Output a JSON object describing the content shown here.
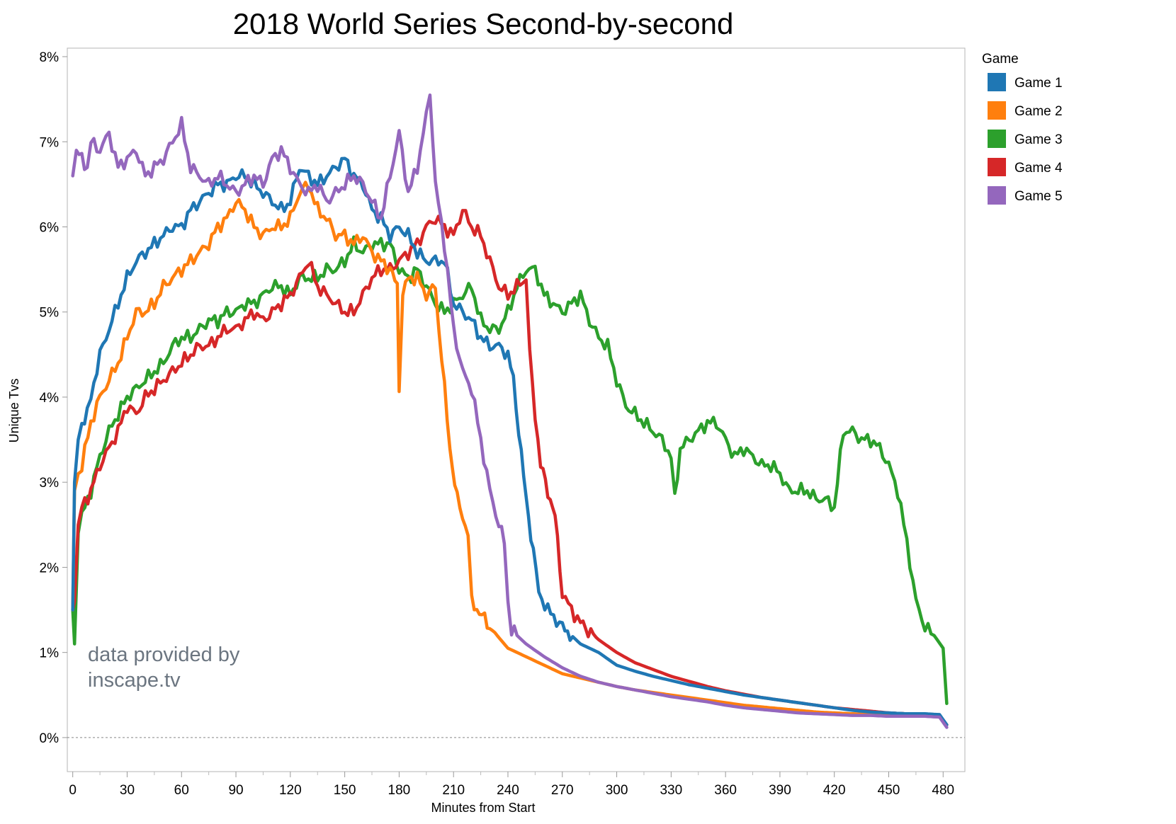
{
  "chart_data": {
    "type": "line",
    "title": "2018 World Series Second-by-second",
    "xlabel": "Minutes from Start",
    "ylabel": "Unique Tvs",
    "xlim": [
      -3,
      492
    ],
    "ylim": [
      -0.4,
      8.1
    ],
    "x_ticks": [
      0,
      30,
      60,
      90,
      120,
      150,
      180,
      210,
      240,
      270,
      300,
      330,
      360,
      390,
      420,
      450,
      480
    ],
    "x_minor_ticks": [
      15,
      45,
      75,
      105,
      135,
      165,
      195,
      225,
      255,
      285,
      315,
      345,
      375,
      405,
      435,
      465
    ],
    "y_ticks": [
      0,
      1,
      2,
      3,
      4,
      5,
      6,
      7,
      8
    ],
    "y_tick_labels": [
      "0%",
      "1%",
      "2%",
      "3%",
      "4%",
      "5%",
      "6%",
      "7%",
      "8%"
    ],
    "zero_line": "dashed",
    "grid": false,
    "legend": {
      "title": "Game",
      "position": "right"
    },
    "annotation": [
      "data provided by",
      "inscape.tv"
    ],
    "series": [
      {
        "name": "Game 1",
        "color": "#1f77b4",
        "x": [
          0,
          1,
          3,
          5,
          8,
          10,
          15,
          20,
          25,
          30,
          35,
          40,
          45,
          50,
          55,
          60,
          65,
          70,
          75,
          80,
          85,
          90,
          95,
          100,
          105,
          110,
          115,
          120,
          125,
          130,
          135,
          140,
          145,
          150,
          155,
          160,
          165,
          170,
          175,
          180,
          185,
          190,
          195,
          200,
          205,
          210,
          215,
          220,
          225,
          230,
          235,
          240,
          243,
          246,
          250,
          254,
          257,
          262,
          270,
          280,
          290,
          300,
          310,
          320,
          330,
          340,
          350,
          360,
          370,
          380,
          390,
          400,
          410,
          420,
          430,
          440,
          450,
          460,
          470,
          478,
          482
        ],
        "y": [
          1.5,
          3.0,
          3.5,
          3.7,
          3.8,
          4.0,
          4.5,
          4.8,
          5.1,
          5.4,
          5.6,
          5.7,
          5.8,
          5.9,
          6.0,
          6.0,
          6.2,
          6.3,
          6.4,
          6.5,
          6.5,
          6.6,
          6.6,
          6.5,
          6.4,
          6.3,
          6.2,
          6.3,
          6.7,
          6.6,
          6.5,
          6.6,
          6.7,
          6.8,
          6.6,
          6.5,
          6.2,
          6.1,
          5.9,
          6.0,
          5.9,
          5.7,
          5.6,
          5.6,
          5.6,
          5.1,
          5.0,
          4.9,
          4.7,
          4.6,
          4.6,
          4.5,
          4.2,
          3.6,
          2.8,
          2.2,
          1.7,
          1.5,
          1.3,
          1.1,
          1.0,
          0.85,
          0.78,
          0.72,
          0.67,
          0.62,
          0.58,
          0.54,
          0.5,
          0.47,
          0.44,
          0.41,
          0.38,
          0.35,
          0.32,
          0.3,
          0.29,
          0.28,
          0.28,
          0.27,
          0.15
        ]
      },
      {
        "name": "Game 2",
        "color": "#ff7f0e",
        "x": [
          0,
          1,
          3,
          5,
          10,
          15,
          20,
          25,
          30,
          35,
          40,
          45,
          50,
          55,
          60,
          65,
          70,
          75,
          80,
          85,
          90,
          95,
          100,
          105,
          110,
          115,
          120,
          125,
          130,
          135,
          140,
          145,
          150,
          155,
          160,
          165,
          170,
          175,
          179,
          180,
          182,
          185,
          190,
          195,
          200,
          202,
          205,
          208,
          212,
          218,
          220,
          230,
          240,
          250,
          260,
          270,
          280,
          290,
          300,
          310,
          320,
          330,
          340,
          350,
          360,
          370,
          380,
          390,
          400,
          410,
          420,
          430,
          440,
          450,
          460,
          470,
          478,
          482
        ],
        "y": [
          1.5,
          2.9,
          3.1,
          3.2,
          3.7,
          4.0,
          4.2,
          4.4,
          4.7,
          5.0,
          5.0,
          5.1,
          5.3,
          5.4,
          5.5,
          5.6,
          5.7,
          5.8,
          6.0,
          6.1,
          6.3,
          6.2,
          6.0,
          5.9,
          6.0,
          6.0,
          6.1,
          6.4,
          6.5,
          6.2,
          6.1,
          5.9,
          5.9,
          5.8,
          5.9,
          5.7,
          5.6,
          5.5,
          5.3,
          4.1,
          5.2,
          5.4,
          5.4,
          5.2,
          5.3,
          4.8,
          4.1,
          3.4,
          2.8,
          2.4,
          1.6,
          1.3,
          1.05,
          0.95,
          0.85,
          0.75,
          0.7,
          0.65,
          0.6,
          0.56,
          0.53,
          0.5,
          0.47,
          0.44,
          0.41,
          0.38,
          0.36,
          0.34,
          0.32,
          0.3,
          0.29,
          0.28,
          0.27,
          0.26,
          0.26,
          0.25,
          0.25,
          0.15
        ]
      },
      {
        "name": "Game 3",
        "color": "#2ca02c",
        "x": [
          0,
          1,
          3,
          5,
          10,
          15,
          20,
          25,
          30,
          35,
          40,
          45,
          50,
          55,
          60,
          65,
          70,
          75,
          80,
          85,
          90,
          95,
          100,
          105,
          110,
          115,
          120,
          125,
          130,
          135,
          140,
          145,
          150,
          155,
          160,
          165,
          170,
          175,
          180,
          185,
          190,
          195,
          200,
          205,
          210,
          215,
          220,
          225,
          230,
          235,
          240,
          245,
          250,
          255,
          260,
          265,
          270,
          275,
          280,
          285,
          290,
          295,
          300,
          305,
          310,
          315,
          320,
          325,
          330,
          332,
          335,
          340,
          345,
          350,
          355,
          360,
          365,
          370,
          375,
          380,
          385,
          390,
          395,
          400,
          405,
          410,
          415,
          420,
          425,
          430,
          435,
          440,
          445,
          450,
          455,
          460,
          465,
          470,
          475,
          480,
          482
        ],
        "y": [
          1.5,
          1.1,
          2.4,
          2.6,
          2.9,
          3.3,
          3.6,
          3.8,
          4.0,
          4.1,
          4.2,
          4.3,
          4.4,
          4.6,
          4.7,
          4.7,
          4.8,
          4.9,
          4.9,
          5.0,
          5.0,
          5.1,
          5.1,
          5.2,
          5.3,
          5.3,
          5.2,
          5.4,
          5.4,
          5.4,
          5.5,
          5.5,
          5.6,
          5.8,
          5.7,
          5.8,
          5.8,
          5.8,
          5.5,
          5.4,
          5.5,
          5.3,
          5.1,
          5.0,
          5.1,
          5.2,
          5.3,
          4.9,
          4.8,
          4.8,
          5.0,
          5.3,
          5.5,
          5.5,
          5.2,
          5.1,
          5.0,
          5.1,
          5.2,
          4.9,
          4.7,
          4.6,
          4.2,
          3.9,
          3.8,
          3.7,
          3.6,
          3.5,
          3.3,
          2.8,
          3.4,
          3.5,
          3.6,
          3.7,
          3.7,
          3.5,
          3.3,
          3.4,
          3.3,
          3.2,
          3.2,
          3.1,
          2.9,
          2.9,
          2.9,
          2.8,
          2.8,
          2.7,
          3.6,
          3.6,
          3.5,
          3.5,
          3.4,
          3.2,
          2.9,
          2.3,
          1.6,
          1.3,
          1.2,
          1.05,
          0.4
        ]
      },
      {
        "name": "Game 4",
        "color": "#d62728",
        "x": [
          0,
          1,
          3,
          5,
          10,
          15,
          20,
          25,
          30,
          35,
          40,
          45,
          50,
          55,
          60,
          65,
          70,
          75,
          80,
          85,
          90,
          95,
          100,
          105,
          110,
          115,
          120,
          125,
          130,
          135,
          140,
          145,
          150,
          155,
          160,
          165,
          170,
          175,
          180,
          185,
          190,
          195,
          200,
          205,
          210,
          215,
          220,
          225,
          230,
          235,
          240,
          245,
          250,
          252,
          255,
          258,
          262,
          266,
          270,
          275,
          280,
          290,
          300,
          310,
          320,
          330,
          340,
          350,
          360,
          370,
          380,
          390,
          400,
          410,
          420,
          430,
          440,
          450,
          460,
          470,
          478,
          482
        ],
        "y": [
          1.5,
          1.6,
          2.5,
          2.7,
          2.9,
          3.2,
          3.4,
          3.6,
          3.9,
          3.8,
          4.0,
          4.1,
          4.2,
          4.3,
          4.4,
          4.5,
          4.6,
          4.6,
          4.7,
          4.8,
          4.8,
          4.9,
          5.0,
          4.9,
          5.0,
          5.1,
          5.2,
          5.4,
          5.6,
          5.3,
          5.2,
          5.1,
          5.0,
          5.0,
          5.2,
          5.4,
          5.5,
          5.5,
          5.6,
          5.7,
          5.8,
          6.0,
          6.1,
          6.0,
          5.9,
          6.2,
          6.0,
          5.9,
          5.6,
          5.3,
          5.2,
          5.3,
          5.4,
          4.5,
          3.8,
          3.2,
          2.9,
          2.6,
          1.7,
          1.5,
          1.35,
          1.15,
          1.0,
          0.88,
          0.8,
          0.72,
          0.66,
          0.6,
          0.55,
          0.51,
          0.47,
          0.44,
          0.41,
          0.38,
          0.35,
          0.33,
          0.31,
          0.29,
          0.28,
          0.27,
          0.26,
          0.15
        ]
      },
      {
        "name": "Game 5",
        "color": "#9467bd",
        "x": [
          0,
          2,
          5,
          8,
          10,
          15,
          20,
          25,
          30,
          35,
          40,
          45,
          50,
          55,
          60,
          65,
          70,
          75,
          80,
          85,
          90,
          95,
          100,
          105,
          110,
          115,
          120,
          125,
          130,
          135,
          140,
          145,
          150,
          155,
          160,
          165,
          170,
          175,
          180,
          185,
          190,
          195,
          197,
          200,
          205,
          210,
          215,
          220,
          225,
          230,
          235,
          238,
          240,
          242,
          245,
          250,
          260,
          270,
          280,
          290,
          300,
          310,
          320,
          330,
          340,
          350,
          360,
          370,
          380,
          390,
          400,
          410,
          420,
          430,
          440,
          450,
          460,
          470,
          478,
          482
        ],
        "y": [
          6.6,
          6.9,
          6.8,
          6.7,
          7.0,
          6.9,
          7.1,
          6.7,
          6.8,
          6.9,
          6.6,
          6.7,
          6.8,
          7.0,
          7.2,
          6.7,
          6.6,
          6.5,
          6.6,
          6.5,
          6.4,
          6.5,
          6.6,
          6.5,
          6.8,
          6.9,
          6.7,
          6.5,
          6.4,
          6.5,
          6.3,
          6.4,
          6.5,
          6.6,
          6.5,
          6.3,
          6.1,
          6.6,
          7.1,
          6.4,
          6.7,
          7.3,
          7.6,
          6.5,
          5.8,
          4.8,
          4.3,
          4.1,
          3.5,
          2.9,
          2.5,
          2.3,
          1.6,
          1.25,
          1.2,
          1.1,
          0.95,
          0.82,
          0.72,
          0.65,
          0.6,
          0.56,
          0.52,
          0.48,
          0.45,
          0.42,
          0.38,
          0.35,
          0.33,
          0.31,
          0.29,
          0.28,
          0.27,
          0.26,
          0.26,
          0.25,
          0.25,
          0.25,
          0.24,
          0.12
        ]
      }
    ]
  }
}
